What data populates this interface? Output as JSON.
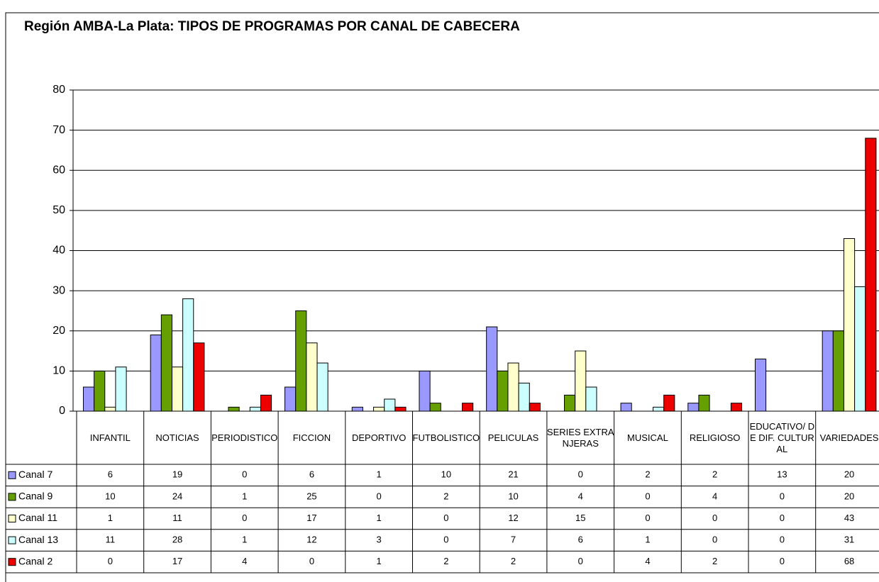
{
  "chart_data": {
    "type": "bar",
    "title": "Región AMBA-La Plata: TIPOS DE PROGRAMAS POR CANAL DE CABECERA",
    "categories": [
      "INFANTIL",
      "NOTICIAS",
      "PERIODISTICO",
      "FICCION",
      "DEPORTIVO",
      "FUTBOLISTICO",
      "PELICULAS",
      "SERIES EXTRANJERAS",
      "MUSICAL",
      "RELIGIOSO",
      "EDUCATIVO/ DE DIF. CULTURAL",
      "VARIEDADES"
    ],
    "series": [
      {
        "name": "Canal 7",
        "color": "#9999ff",
        "values": [
          6,
          19,
          0,
          6,
          1,
          10,
          21,
          0,
          2,
          2,
          13,
          20
        ]
      },
      {
        "name": "Canal 9",
        "color": "#66a000",
        "values": [
          10,
          24,
          1,
          25,
          0,
          2,
          10,
          4,
          0,
          4,
          0,
          20
        ]
      },
      {
        "name": "Canal 11",
        "color": "#ffffcc",
        "values": [
          1,
          11,
          0,
          17,
          1,
          0,
          12,
          15,
          0,
          0,
          0,
          43
        ]
      },
      {
        "name": "Canal 13",
        "color": "#ccffff",
        "values": [
          11,
          28,
          1,
          12,
          3,
          0,
          7,
          6,
          1,
          0,
          0,
          31
        ]
      },
      {
        "name": "Canal 2",
        "color": "#ee0000",
        "values": [
          0,
          17,
          4,
          0,
          1,
          2,
          2,
          0,
          4,
          2,
          0,
          68
        ]
      }
    ],
    "ylim": [
      0,
      80
    ],
    "yticks": [
      0,
      10,
      20,
      30,
      40,
      50,
      60,
      70,
      80
    ],
    "grid": true
  }
}
